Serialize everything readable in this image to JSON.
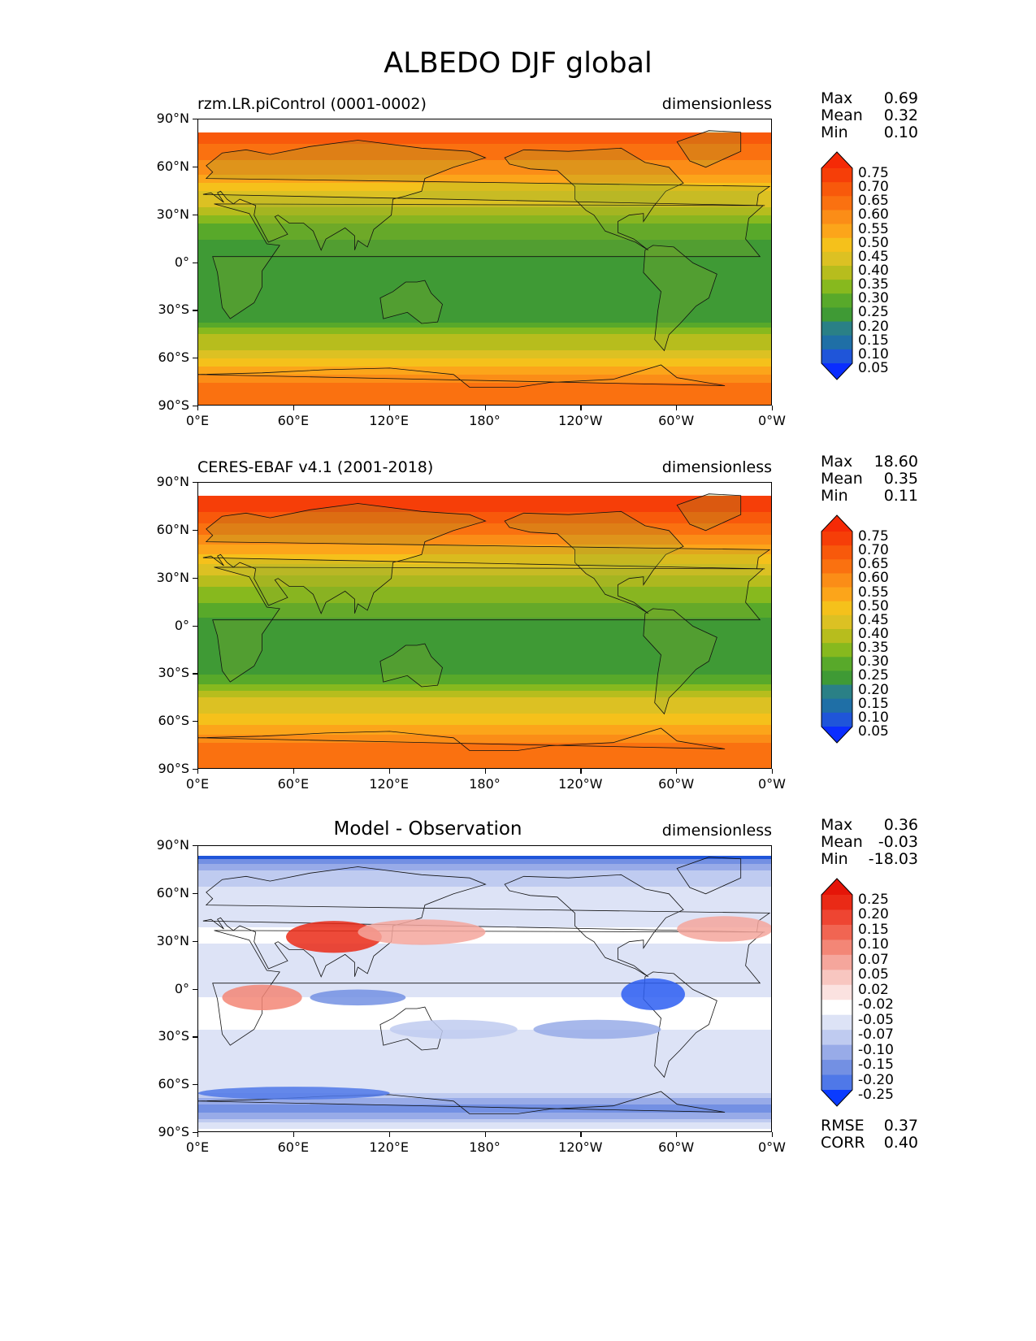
{
  "title": "ALBEDO DJF global",
  "colors": {
    "seq": [
      "#0a2dff",
      "#1f55d9",
      "#1f6fa6",
      "#2a8086",
      "#3f9a35",
      "#58a92a",
      "#87b91e",
      "#b7bd1d",
      "#dcc123",
      "#f5c11b",
      "#fca51a",
      "#fb8d17",
      "#fa7110",
      "#f8590b",
      "#f63e08",
      "#f52a06"
    ],
    "diff": [
      "#0a3bff",
      "#2d5ef2",
      "#4f78e8",
      "#7390e3",
      "#98abe8",
      "#bfcbf0",
      "#dde3f6",
      "#ffffff",
      "#fbe2e0",
      "#f8c6c0",
      "#f5a69c",
      "#f38676",
      "#f16552",
      "#ee4532",
      "#ea2a16",
      "#e51508"
    ]
  },
  "panels": [
    {
      "id": "model",
      "left_label": "rzm.LR.piControl (0001-0002)",
      "center_label": "",
      "units": "dimensionless",
      "stats": [
        {
          "label": "Max",
          "value": "0.69"
        },
        {
          "label": "Mean",
          "value": "0.32"
        },
        {
          "label": "Min",
          "value": "0.10"
        }
      ],
      "colorbar_labels": [
        "0.75",
        "0.70",
        "0.65",
        "0.60",
        "0.55",
        "0.50",
        "0.45",
        "0.40",
        "0.35",
        "0.30",
        "0.25",
        "0.20",
        "0.15",
        "0.10",
        "0.05"
      ],
      "extra_stats": []
    },
    {
      "id": "obs",
      "left_label": "CERES-EBAF v4.1 (2001-2018)",
      "center_label": "",
      "units": "dimensionless",
      "stats": [
        {
          "label": "Max",
          "value": "18.60"
        },
        {
          "label": "Mean",
          "value": "0.35"
        },
        {
          "label": "Min",
          "value": "0.11"
        }
      ],
      "colorbar_labels": [
        "0.75",
        "0.70",
        "0.65",
        "0.60",
        "0.55",
        "0.50",
        "0.45",
        "0.40",
        "0.35",
        "0.30",
        "0.25",
        "0.20",
        "0.15",
        "0.10",
        "0.05"
      ],
      "extra_stats": []
    },
    {
      "id": "diff",
      "left_label": "",
      "center_label": "Model - Observation",
      "units": "dimensionless",
      "stats": [
        {
          "label": "Max",
          "value": "0.36"
        },
        {
          "label": "Mean",
          "value": "-0.03"
        },
        {
          "label": "Min",
          "value": "-18.03"
        }
      ],
      "colorbar_labels": [
        "0.25",
        "0.20",
        "0.15",
        "0.10",
        "0.07",
        "0.05",
        "0.02",
        "-0.02",
        "-0.05",
        "-0.07",
        "-0.10",
        "-0.15",
        "-0.20",
        "-0.25"
      ],
      "extra_stats": [
        {
          "label": "RMSE",
          "value": "0.37"
        },
        {
          "label": "CORR",
          "value": "0.40"
        }
      ]
    }
  ],
  "axes": {
    "yticks": [
      "90°N",
      "60°N",
      "30°N",
      "0°",
      "30°S",
      "60°S",
      "90°S"
    ],
    "xticks": [
      "0°E",
      "60°E",
      "120°E",
      "180°",
      "120°W",
      "60°W",
      "0°W"
    ]
  },
  "chart_data": [
    {
      "type": "heatmap",
      "title": "rzm.LR.piControl (0001-0002)",
      "units": "dimensionless",
      "xlim": [
        0,
        360
      ],
      "ylim": [
        -90,
        90
      ],
      "color_levels": [
        0.05,
        0.1,
        0.15,
        0.2,
        0.25,
        0.3,
        0.35,
        0.4,
        0.45,
        0.5,
        0.55,
        0.6,
        0.65,
        0.7,
        0.75
      ],
      "stats": {
        "max": 0.69,
        "mean": 0.32,
        "min": 0.1
      },
      "zonal_profile": {
        "lat": [
          -90,
          -75,
          -65,
          -55,
          -45,
          -35,
          -25,
          -15,
          -5,
          5,
          15,
          25,
          35,
          45,
          55,
          65,
          75,
          90
        ],
        "albedo": [
          0.62,
          0.6,
          0.5,
          0.4,
          0.36,
          0.22,
          0.2,
          0.2,
          0.2,
          0.22,
          0.25,
          0.3,
          0.4,
          0.45,
          0.55,
          0.6,
          0.65,
          0.65
        ]
      }
    },
    {
      "type": "heatmap",
      "title": "CERES-EBAF v4.1 (2001-2018)",
      "units": "dimensionless",
      "xlim": [
        0,
        360
      ],
      "ylim": [
        -90,
        90
      ],
      "color_levels": [
        0.05,
        0.1,
        0.15,
        0.2,
        0.25,
        0.3,
        0.35,
        0.4,
        0.45,
        0.5,
        0.55,
        0.6,
        0.65,
        0.7,
        0.75
      ],
      "stats": {
        "max": 18.6,
        "mean": 0.35,
        "min": 0.11
      },
      "zonal_profile": {
        "lat": [
          -90,
          -75,
          -65,
          -55,
          -45,
          -35,
          -25,
          -15,
          -5,
          5,
          15,
          25,
          35,
          45,
          55,
          65,
          75,
          90
        ],
        "albedo": [
          0.62,
          0.62,
          0.52,
          0.45,
          0.4,
          0.28,
          0.22,
          0.22,
          0.22,
          0.25,
          0.3,
          0.35,
          0.42,
          0.5,
          0.58,
          0.65,
          0.72,
          0.75
        ]
      }
    },
    {
      "type": "heatmap",
      "title": "Model - Observation",
      "units": "dimensionless",
      "xlim": [
        0,
        360
      ],
      "ylim": [
        -90,
        90
      ],
      "color_levels": [
        -0.25,
        -0.2,
        -0.15,
        -0.1,
        -0.07,
        -0.05,
        -0.02,
        0.02,
        0.05,
        0.07,
        0.1,
        0.15,
        0.2,
        0.25
      ],
      "stats": {
        "max": 0.36,
        "mean": -0.03,
        "min": -18.03,
        "rmse": 0.37,
        "corr": 0.4
      },
      "zonal_profile": {
        "lat": [
          -90,
          -75,
          -65,
          -55,
          -45,
          -35,
          -25,
          -15,
          -5,
          5,
          15,
          25,
          35,
          45,
          55,
          65,
          75,
          90
        ],
        "diff": [
          0.0,
          -0.12,
          -0.05,
          -0.05,
          -0.04,
          -0.03,
          -0.02,
          -0.02,
          -0.02,
          -0.03,
          -0.05,
          -0.03,
          0.0,
          -0.05,
          -0.03,
          -0.05,
          -0.07,
          -0.2
        ]
      }
    }
  ]
}
